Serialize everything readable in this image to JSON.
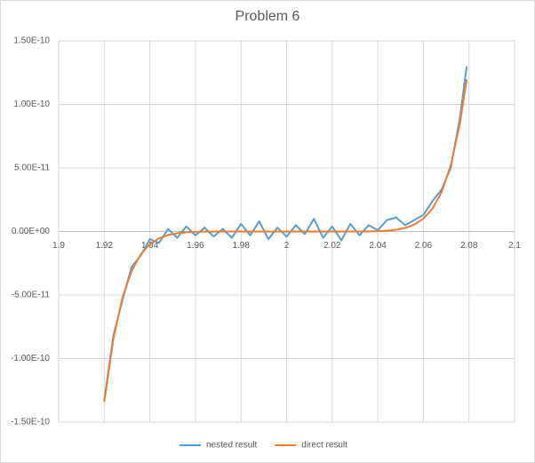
{
  "chart_data": {
    "type": "line",
    "title": "Problem 6",
    "x": [
      1.92,
      1.924,
      1.928,
      1.932,
      1.936,
      1.94,
      1.944,
      1.948,
      1.952,
      1.956,
      1.96,
      1.964,
      1.968,
      1.972,
      1.976,
      1.98,
      1.984,
      1.988,
      1.992,
      1.996,
      2.0,
      2.004,
      2.008,
      2.012,
      2.016,
      2.02,
      2.024,
      2.028,
      2.032,
      2.036,
      2.04,
      2.044,
      2.048,
      2.052,
      2.056,
      2.06,
      2.064,
      2.068,
      2.072,
      2.076,
      2.079
    ],
    "series": [
      {
        "name": "nested result",
        "color": "#5b9bd5",
        "values": [
          -1.33e-10,
          -8.2e-11,
          -5.4e-11,
          -2.8e-11,
          -1.9e-11,
          -6e-12,
          -9e-12,
          2e-12,
          -5e-12,
          4e-12,
          -3e-12,
          3e-12,
          -4e-12,
          2e-12,
          -5e-12,
          6e-12,
          -3e-12,
          8e-12,
          -6e-12,
          3e-12,
          -4e-12,
          5e-12,
          -2e-12,
          1e-11,
          -5e-12,
          4e-12,
          -7e-12,
          6e-12,
          -3e-12,
          5e-12,
          1e-12,
          9e-12,
          1.1e-11,
          5e-12,
          9e-12,
          1.3e-11,
          2.4e-11,
          3.3e-11,
          5e-11,
          8.9e-11,
          1.3e-10
        ]
      },
      {
        "name": "direct result",
        "color": "#ed7d31",
        "values": [
          -1.342e-10,
          -8.46e-11,
          -5.2e-11,
          -3.11e-11,
          -1.8e-11,
          -1.01e-11,
          -5.4e-12,
          -2.8e-12,
          -1.35e-12,
          -6.2e-13,
          -2.6e-13,
          -1e-13,
          -3.5e-14,
          -1e-14,
          0,
          0,
          0,
          0,
          0,
          0,
          0,
          0,
          0,
          0,
          0,
          0,
          3e-15,
          1e-14,
          3.5e-14,
          1e-13,
          2.6e-13,
          6.2e-13,
          1.35e-12,
          2.8e-12,
          5.4e-12,
          1.01e-11,
          1.8e-11,
          3.11e-11,
          5.2e-11,
          8.46e-11,
          1.198e-10
        ]
      }
    ],
    "xlim": [
      1.9,
      2.1
    ],
    "xticks": [
      1.9,
      1.92,
      1.94,
      1.96,
      1.98,
      2,
      2.02,
      2.04,
      2.06,
      2.08,
      2.1
    ],
    "ylim": [
      -1.5e-10,
      1.5e-10
    ],
    "yticks": [
      {
        "value": -1.5e-10,
        "label": "-1.50E-10"
      },
      {
        "value": -1e-10,
        "label": "-1.00E-10"
      },
      {
        "value": -5e-11,
        "label": "-5.00E-11"
      },
      {
        "value": 0,
        "label": "0.00E+00"
      },
      {
        "value": 5e-11,
        "label": "5.00E-11"
      },
      {
        "value": 1e-10,
        "label": "1.00E-10"
      },
      {
        "value": 1.5e-10,
        "label": "1.50E-10"
      }
    ],
    "grid": true,
    "legend": "bottom"
  }
}
